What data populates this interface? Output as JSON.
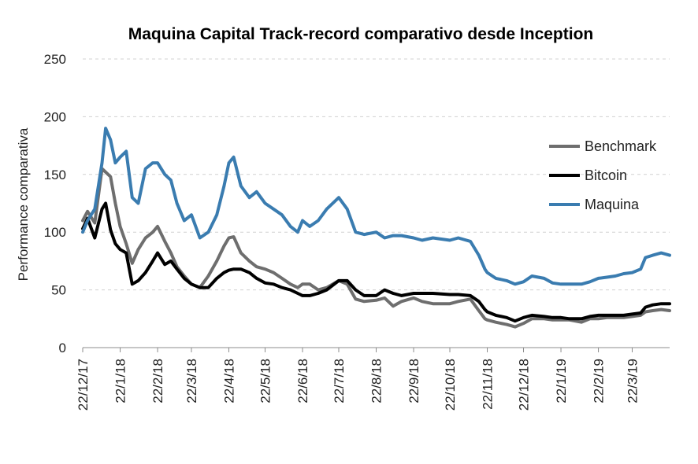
{
  "chart_data": {
    "type": "line",
    "title": "Maquina Capital Track-record comparativo desde Inception",
    "ylabel": "Performance comparativa",
    "xlabel": "",
    "ylim": [
      0,
      250
    ],
    "yticks": [
      0,
      50,
      100,
      150,
      200,
      250
    ],
    "grid": true,
    "legend_position": "right",
    "x": [
      "22/12/17",
      "22/1/18",
      "22/2/18",
      "22/3/18",
      "22/4/18",
      "22/5/18",
      "22/6/18",
      "22/7/18",
      "22/8/18",
      "22/9/18",
      "22/10/18",
      "22/11/18",
      "22/12/18",
      "22/1/19",
      "22/2/19",
      "22/3/19"
    ],
    "x_end": "22/4/19",
    "series": [
      {
        "name": "Benchmark",
        "color": "#6e6e6e",
        "values": [
          [
            "22/12/17",
            110
          ],
          [
            "26/12/17",
            118
          ],
          [
            "1/1/18",
            108
          ],
          [
            "7/1/18",
            155
          ],
          [
            "14/1/18",
            148
          ],
          [
            "18/1/18",
            125
          ],
          [
            "22/1/18",
            105
          ],
          [
            "27/1/18",
            90
          ],
          [
            "1/2/18",
            73
          ],
          [
            "6/2/18",
            85
          ],
          [
            "12/2/18",
            95
          ],
          [
            "18/2/18",
            100
          ],
          [
            "22/2/18",
            105
          ],
          [
            "28/2/18",
            92
          ],
          [
            "5/3/18",
            82
          ],
          [
            "10/3/18",
            70
          ],
          [
            "16/3/18",
            62
          ],
          [
            "22/3/18",
            55
          ],
          [
            "29/3/18",
            52
          ],
          [
            "5/4/18",
            62
          ],
          [
            "12/4/18",
            75
          ],
          [
            "18/4/18",
            88
          ],
          [
            "22/4/18",
            95
          ],
          [
            "26/4/18",
            96
          ],
          [
            "2/5/18",
            82
          ],
          [
            "9/5/18",
            75
          ],
          [
            "15/5/18",
            70
          ],
          [
            "22/5/18",
            68
          ],
          [
            "29/5/18",
            65
          ],
          [
            "5/6/18",
            60
          ],
          [
            "12/6/18",
            55
          ],
          [
            "18/6/18",
            52
          ],
          [
            "22/6/18",
            55
          ],
          [
            "28/6/18",
            55
          ],
          [
            "5/7/18",
            50
          ],
          [
            "12/7/18",
            52
          ],
          [
            "22/7/18",
            58
          ],
          [
            "29/7/18",
            55
          ],
          [
            "5/8/18",
            42
          ],
          [
            "12/8/18",
            40
          ],
          [
            "22/8/18",
            41
          ],
          [
            "29/8/18",
            43
          ],
          [
            "5/9/18",
            36
          ],
          [
            "12/9/18",
            40
          ],
          [
            "22/9/18",
            43
          ],
          [
            "29/9/18",
            40
          ],
          [
            "8/10/18",
            38
          ],
          [
            "22/10/18",
            38
          ],
          [
            "29/10/18",
            40
          ],
          [
            "8/11/18",
            42
          ],
          [
            "15/11/18",
            32
          ],
          [
            "20/11/18",
            25
          ],
          [
            "22/11/18",
            24
          ],
          [
            "29/11/18",
            22
          ],
          [
            "8/12/18",
            20
          ],
          [
            "15/12/18",
            18
          ],
          [
            "22/12/18",
            21
          ],
          [
            "29/12/18",
            25
          ],
          [
            "8/1/19",
            25
          ],
          [
            "15/1/19",
            24
          ],
          [
            "22/1/19",
            24
          ],
          [
            "29/1/19",
            24
          ],
          [
            "8/2/19",
            22
          ],
          [
            "15/2/19",
            25
          ],
          [
            "22/2/19",
            25
          ],
          [
            "1/3/19",
            26
          ],
          [
            "8/3/19",
            26
          ],
          [
            "15/3/19",
            26
          ],
          [
            "22/3/19",
            27
          ],
          [
            "29/3/19",
            28
          ],
          [
            "2/4/19",
            31
          ],
          [
            "8/4/19",
            32
          ],
          [
            "15/4/19",
            33
          ],
          [
            "22/4/19",
            32
          ]
        ]
      },
      {
        "name": "Bitcoin",
        "color": "#000000",
        "values": [
          [
            "22/12/17",
            103
          ],
          [
            "26/12/17",
            112
          ],
          [
            "1/1/18",
            95
          ],
          [
            "7/1/18",
            120
          ],
          [
            "10/1/18",
            125
          ],
          [
            "14/1/18",
            102
          ],
          [
            "18/1/18",
            90
          ],
          [
            "22/1/18",
            85
          ],
          [
            "27/1/18",
            82
          ],
          [
            "1/2/18",
            55
          ],
          [
            "6/2/18",
            58
          ],
          [
            "12/2/18",
            65
          ],
          [
            "18/2/18",
            75
          ],
          [
            "22/2/18",
            82
          ],
          [
            "28/2/18",
            72
          ],
          [
            "5/3/18",
            75
          ],
          [
            "10/3/18",
            68
          ],
          [
            "16/3/18",
            60
          ],
          [
            "22/3/18",
            55
          ],
          [
            "29/3/18",
            52
          ],
          [
            "5/4/18",
            52
          ],
          [
            "12/4/18",
            60
          ],
          [
            "18/4/18",
            65
          ],
          [
            "22/4/18",
            67
          ],
          [
            "26/4/18",
            68
          ],
          [
            "2/5/18",
            68
          ],
          [
            "9/5/18",
            65
          ],
          [
            "15/5/18",
            60
          ],
          [
            "22/5/18",
            56
          ],
          [
            "29/5/18",
            55
          ],
          [
            "5/6/18",
            52
          ],
          [
            "12/6/18",
            50
          ],
          [
            "18/6/18",
            47
          ],
          [
            "22/6/18",
            45
          ],
          [
            "28/6/18",
            45
          ],
          [
            "5/7/18",
            47
          ],
          [
            "12/7/18",
            50
          ],
          [
            "22/7/18",
            58
          ],
          [
            "29/7/18",
            58
          ],
          [
            "5/8/18",
            50
          ],
          [
            "12/8/18",
            45
          ],
          [
            "22/8/18",
            45
          ],
          [
            "29/8/18",
            50
          ],
          [
            "5/9/18",
            47
          ],
          [
            "12/9/18",
            45
          ],
          [
            "22/9/18",
            47
          ],
          [
            "29/9/18",
            47
          ],
          [
            "8/10/18",
            47
          ],
          [
            "22/10/18",
            46
          ],
          [
            "29/10/18",
            46
          ],
          [
            "8/11/18",
            45
          ],
          [
            "15/11/18",
            40
          ],
          [
            "20/11/18",
            33
          ],
          [
            "22/11/18",
            31
          ],
          [
            "29/11/18",
            28
          ],
          [
            "8/12/18",
            26
          ],
          [
            "15/12/18",
            23
          ],
          [
            "22/12/18",
            26
          ],
          [
            "29/12/18",
            28
          ],
          [
            "8/1/19",
            27
          ],
          [
            "15/1/19",
            26
          ],
          [
            "22/1/19",
            26
          ],
          [
            "29/1/19",
            25
          ],
          [
            "8/2/19",
            25
          ],
          [
            "15/2/19",
            27
          ],
          [
            "22/2/19",
            28
          ],
          [
            "1/3/19",
            28
          ],
          [
            "8/3/19",
            28
          ],
          [
            "15/3/19",
            28
          ],
          [
            "22/3/19",
            29
          ],
          [
            "29/3/19",
            30
          ],
          [
            "2/4/19",
            35
          ],
          [
            "8/4/19",
            37
          ],
          [
            "15/4/19",
            38
          ],
          [
            "22/4/19",
            38
          ]
        ]
      },
      {
        "name": "Maquina",
        "color": "#3a7cb0",
        "values": [
          [
            "22/12/17",
            100
          ],
          [
            "26/12/17",
            110
          ],
          [
            "1/1/18",
            120
          ],
          [
            "7/1/18",
            160
          ],
          [
            "10/1/18",
            190
          ],
          [
            "14/1/18",
            180
          ],
          [
            "18/1/18",
            160
          ],
          [
            "22/1/18",
            165
          ],
          [
            "27/1/18",
            170
          ],
          [
            "1/2/18",
            130
          ],
          [
            "6/2/18",
            125
          ],
          [
            "12/2/18",
            155
          ],
          [
            "18/2/18",
            160
          ],
          [
            "22/2/18",
            160
          ],
          [
            "28/2/18",
            150
          ],
          [
            "5/3/18",
            145
          ],
          [
            "10/3/18",
            125
          ],
          [
            "16/3/18",
            110
          ],
          [
            "22/3/18",
            115
          ],
          [
            "29/3/18",
            95
          ],
          [
            "5/4/18",
            100
          ],
          [
            "12/4/18",
            115
          ],
          [
            "18/4/18",
            140
          ],
          [
            "22/4/18",
            160
          ],
          [
            "26/4/18",
            165
          ],
          [
            "2/5/18",
            140
          ],
          [
            "9/5/18",
            130
          ],
          [
            "15/5/18",
            135
          ],
          [
            "22/5/18",
            125
          ],
          [
            "29/5/18",
            120
          ],
          [
            "5/6/18",
            115
          ],
          [
            "12/6/18",
            105
          ],
          [
            "18/6/18",
            100
          ],
          [
            "22/6/18",
            110
          ],
          [
            "28/6/18",
            105
          ],
          [
            "5/7/18",
            110
          ],
          [
            "12/7/18",
            120
          ],
          [
            "22/7/18",
            130
          ],
          [
            "29/7/18",
            120
          ],
          [
            "5/8/18",
            100
          ],
          [
            "12/8/18",
            98
          ],
          [
            "22/8/18",
            100
          ],
          [
            "29/8/18",
            95
          ],
          [
            "5/9/18",
            97
          ],
          [
            "12/9/18",
            97
          ],
          [
            "22/9/18",
            95
          ],
          [
            "29/9/18",
            93
          ],
          [
            "8/10/18",
            95
          ],
          [
            "22/10/18",
            93
          ],
          [
            "29/10/18",
            95
          ],
          [
            "8/11/18",
            92
          ],
          [
            "15/11/18",
            80
          ],
          [
            "20/11/18",
            68
          ],
          [
            "22/11/18",
            65
          ],
          [
            "29/11/18",
            60
          ],
          [
            "8/12/18",
            58
          ],
          [
            "15/12/18",
            55
          ],
          [
            "22/12/18",
            57
          ],
          [
            "29/12/18",
            62
          ],
          [
            "8/1/19",
            60
          ],
          [
            "15/1/19",
            56
          ],
          [
            "22/1/19",
            55
          ],
          [
            "29/1/19",
            55
          ],
          [
            "8/2/19",
            55
          ],
          [
            "15/2/19",
            57
          ],
          [
            "22/2/19",
            60
          ],
          [
            "1/3/19",
            61
          ],
          [
            "8/3/19",
            62
          ],
          [
            "15/3/19",
            64
          ],
          [
            "22/3/19",
            65
          ],
          [
            "29/3/19",
            68
          ],
          [
            "2/4/19",
            78
          ],
          [
            "8/4/19",
            80
          ],
          [
            "15/4/19",
            82
          ],
          [
            "22/4/19",
            80
          ]
        ]
      }
    ]
  }
}
